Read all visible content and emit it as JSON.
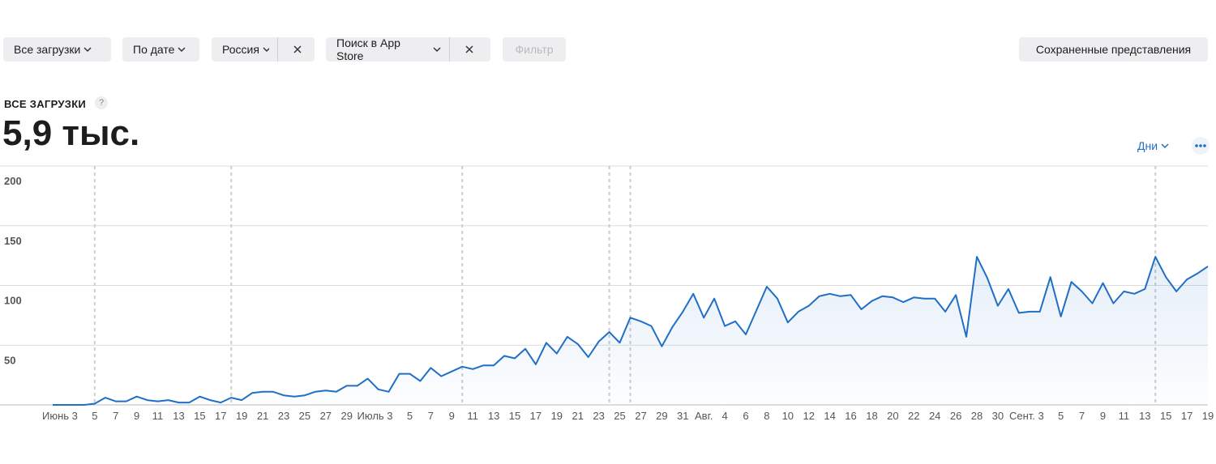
{
  "toolbar": {
    "filters": [
      {
        "label": "Все загрузки"
      },
      {
        "label": "По дате"
      },
      {
        "label": "Россия"
      },
      {
        "label": "Поиск в App Store"
      }
    ],
    "filter_button": "Фильтр",
    "saved_views": "Сохраненные представления"
  },
  "metric": {
    "title": "ВСЕ ЗАГРУЗКИ",
    "help": "?",
    "value": "5,9 тыс.",
    "period": "Дни"
  },
  "chart_data": {
    "type": "line",
    "categories": [
      null,
      null,
      "Июнь 3",
      null,
      "5",
      null,
      "7",
      null,
      "9",
      null,
      "11",
      null,
      "13",
      null,
      "15",
      null,
      "17",
      null,
      "19",
      null,
      "21",
      null,
      "23",
      null,
      "25",
      null,
      "27",
      null,
      "29",
      null,
      null,
      null,
      "Июль 3",
      null,
      "5",
      null,
      "7",
      null,
      "9",
      null,
      "11",
      null,
      "13",
      null,
      "15",
      null,
      "17",
      null,
      "19",
      null,
      "21",
      null,
      "23",
      null,
      "25",
      null,
      "27",
      null,
      "29",
      null,
      "31",
      null,
      "Авг.",
      null,
      "4",
      null,
      "6",
      null,
      "8",
      null,
      "10",
      null,
      "12",
      null,
      "14",
      null,
      "16",
      null,
      "18",
      null,
      "20",
      null,
      "22",
      null,
      "24",
      null,
      "26",
      null,
      "28",
      null,
      "30",
      null,
      null,
      null,
      "Сент. 3",
      null,
      "5",
      null,
      "7",
      null,
      "9",
      null,
      "11",
      null,
      "13",
      null,
      "15",
      null,
      "17",
      null,
      "19"
    ],
    "series": [
      {
        "name": "Все загрузки",
        "color": "#1f6fc5",
        "values": [
          0,
          0,
          0,
          0,
          1,
          6,
          3,
          3,
          7,
          4,
          3,
          4,
          2,
          2,
          7,
          4,
          2,
          6,
          4,
          10,
          11,
          11,
          8,
          7,
          8,
          11,
          12,
          11,
          16,
          16,
          22,
          13,
          11,
          26,
          26,
          20,
          31,
          24,
          28,
          32,
          30,
          33,
          33,
          41,
          39,
          47,
          34,
          52,
          43,
          57,
          51,
          40,
          53,
          61,
          52,
          73,
          70,
          66,
          49,
          65,
          78,
          93,
          73,
          89,
          66,
          70,
          59,
          79,
          99,
          89,
          69,
          78,
          83,
          91,
          93,
          91,
          92,
          80,
          87,
          91,
          90,
          86,
          90,
          89,
          89,
          78,
          92,
          57,
          124,
          106,
          83,
          97,
          77,
          78,
          78,
          107,
          74,
          103,
          95,
          85,
          102,
          85,
          95,
          93,
          97,
          124,
          107,
          95,
          105,
          110,
          116
        ]
      }
    ],
    "ylim": [
      0,
      200
    ],
    "yticks": [
      50,
      100,
      150,
      200
    ],
    "grid": true,
    "event_markers": [
      4,
      17,
      39,
      53,
      55,
      105
    ]
  }
}
